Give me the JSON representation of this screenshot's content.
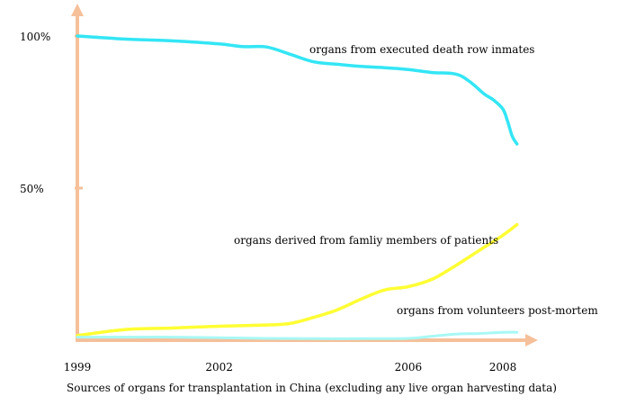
{
  "chart_data": {
    "type": "line",
    "title": "",
    "caption": "Sources of organs for transplantation in China (excluding any live organ harvesting data)",
    "xlabel": "",
    "ylabel": "",
    "x_ticks": [
      "1999",
      "2002",
      "2006",
      "2008"
    ],
    "x_tick_values": [
      1999,
      2002,
      2006,
      2008
    ],
    "y_ticks": [
      "100%",
      "50%"
    ],
    "y_tick_values": [
      100,
      50
    ],
    "xlim": [
      1999,
      2008.4
    ],
    "ylim": [
      0,
      100
    ],
    "grid": false,
    "legend": "inline labels beside each line",
    "colors": {
      "axis": "#F5C09A",
      "executed": "#33E6F5",
      "family": "#FFFF33",
      "volunteers": "#A8F8F5"
    },
    "series": [
      {
        "name": "organs from executed death row inmates",
        "color": "#33E6F5",
        "x": [
          1999,
          2000,
          2001,
          2002,
          2002.5,
          2003,
          2003.5,
          2004,
          2004.5,
          2005,
          2005.5,
          2006,
          2006.5,
          2007,
          2007.3,
          2007.6,
          2007.8,
          2008,
          2008.1,
          2008.2,
          2008.3
        ],
        "values": [
          100,
          99,
          98.4,
          97.4,
          96.5,
          96.4,
          94,
          91.5,
          90.7,
          90,
          89.6,
          89,
          88,
          87.5,
          85,
          81,
          79,
          76,
          72,
          67,
          64.5
        ]
      },
      {
        "name": "organs derived from famliy members of patients",
        "color": "#FFFF33",
        "x": [
          1999,
          2000,
          2001,
          2002,
          2003,
          2003.5,
          2004,
          2004.5,
          2005,
          2005.5,
          2006,
          2006.5,
          2007,
          2007.5,
          2008,
          2008.3
        ],
        "values": [
          1.5,
          3.5,
          4,
          4.6,
          5,
          5.5,
          7.5,
          10,
          13.5,
          16.5,
          17.6,
          20,
          24.5,
          29.5,
          34.5,
          38
        ]
      },
      {
        "name": "organs from volunteers post-mortem",
        "color": "#A8F8F5",
        "x": [
          1999,
          2000,
          2001,
          2002,
          2003,
          2004,
          2005,
          2006,
          2006.5,
          2007,
          2007.5,
          2008,
          2008.3
        ],
        "values": [
          1,
          1,
          1,
          0.8,
          0.6,
          0.5,
          0.5,
          0.6,
          1.3,
          2,
          2.2,
          2.6,
          2.6
        ]
      }
    ]
  }
}
